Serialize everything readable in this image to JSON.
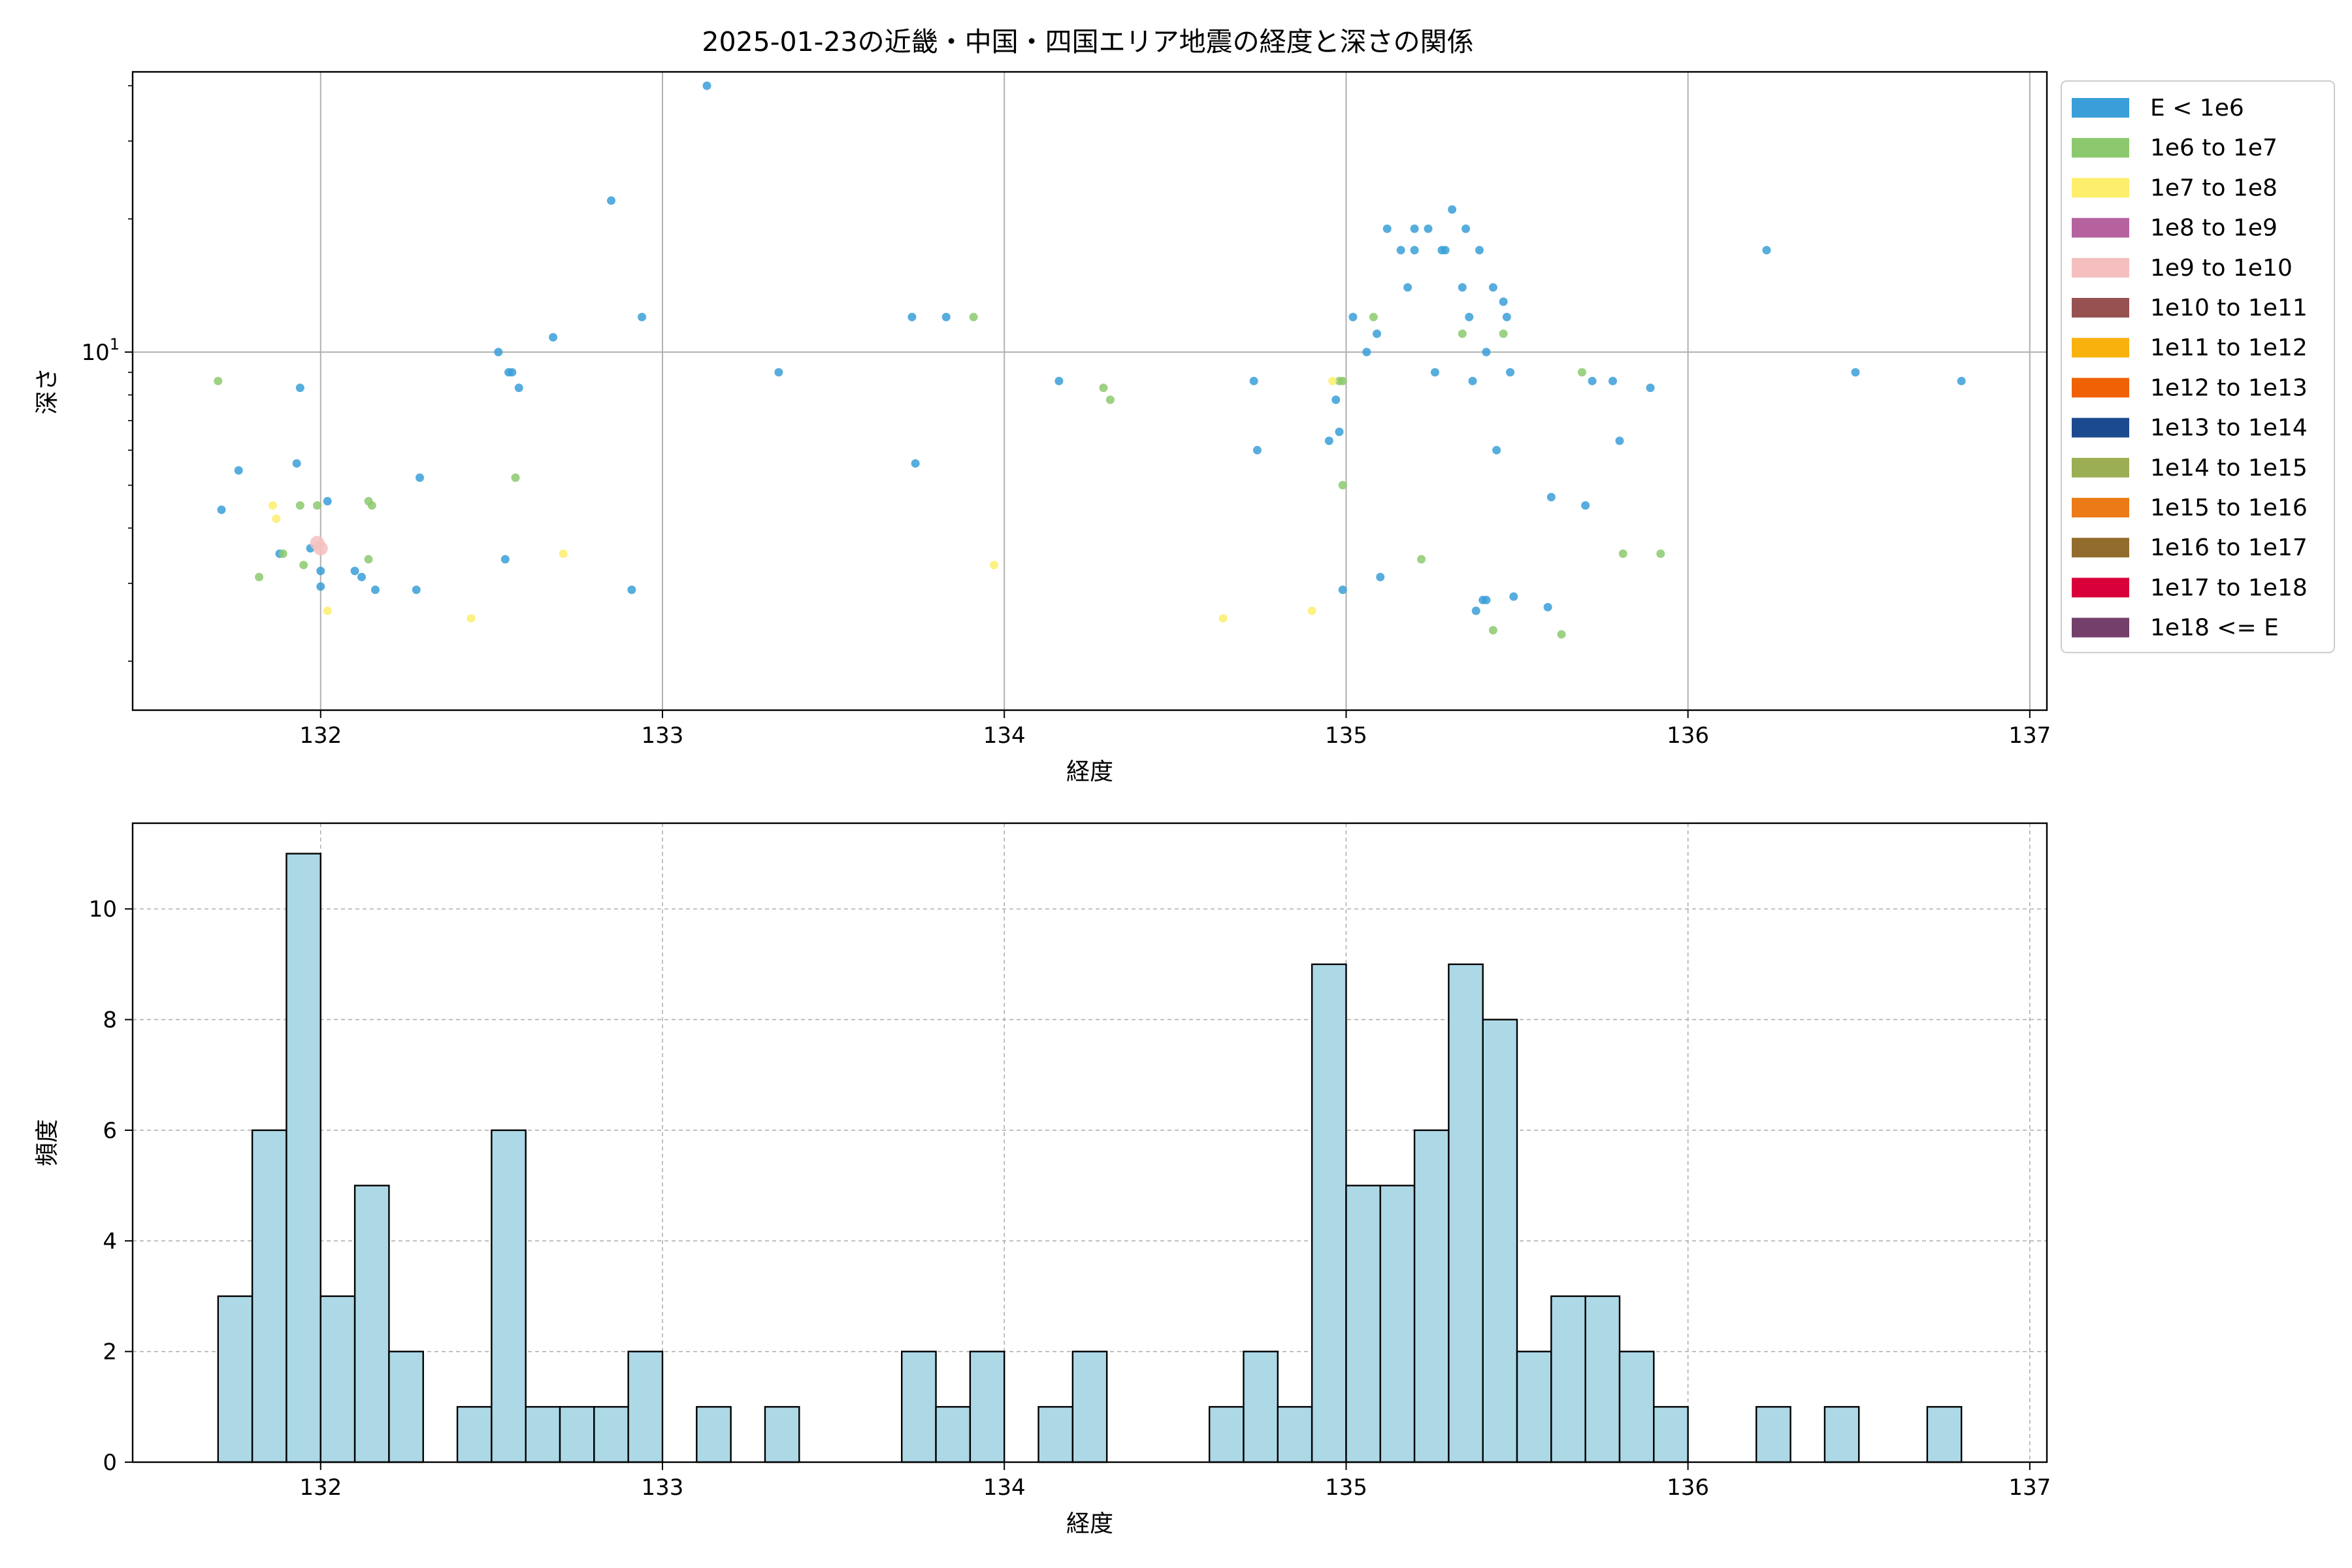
{
  "figure": {
    "title": "2025-01-23の近畿・中国・四国エリア地震の経度と深さの関係"
  },
  "colors": {
    "scatter_blue": "#3a9fd8",
    "scatter_green": "#8cc96e",
    "scatter_yellow": "#fdee6b",
    "scatter_pink": "#f5bfbf",
    "histogram_fill": "#add8e6",
    "histogram_edge": "#000000",
    "grid": "#b0b0b0"
  },
  "chart_data": [
    {
      "type": "scatter",
      "xlabel": "経度",
      "ylabel": "深さ",
      "y_scale": "log",
      "xlim": [
        131.45,
        137.05
      ],
      "ylim": [
        1.55,
        43
      ],
      "x_ticks": [
        132,
        133,
        134,
        135,
        136,
        137
      ],
      "y_major_tick": 10,
      "y_major_label_base": "10",
      "y_major_label_exp": "1",
      "grid": true,
      "legend_position": "outside-right",
      "legend": [
        {
          "label": "E < 1e6",
          "color": "#3a9fd8"
        },
        {
          "label": "1e6 to 1e7",
          "color": "#8cc96e"
        },
        {
          "label": "1e7 to 1e8",
          "color": "#fdee6b"
        },
        {
          "label": "1e8 to 1e9",
          "color": "#b5629f"
        },
        {
          "label": "1e9 to 1e10",
          "color": "#f5bfbf"
        },
        {
          "label": "1e10 to 1e11",
          "color": "#975151"
        },
        {
          "label": "1e11 to 1e12",
          "color": "#f9b10e"
        },
        {
          "label": "1e12 to 1e13",
          "color": "#ef6104"
        },
        {
          "label": "1e13 to 1e14",
          "color": "#1c4a8f"
        },
        {
          "label": "1e14 to 1e15",
          "color": "#9bae53"
        },
        {
          "label": "1e15 to 1e16",
          "color": "#ec7b17"
        },
        {
          "label": "1e16 to 1e17",
          "color": "#926c2d"
        },
        {
          "label": "1e17 to 1e18",
          "color": "#d9003a"
        },
        {
          "label": "1e18 <= E",
          "color": "#74406b"
        }
      ],
      "series": [
        {
          "name": "E < 1e6",
          "points": [
            [
              131.71,
              4.4
            ],
            [
              131.76,
              5.4
            ],
            [
              131.88,
              3.5
            ],
            [
              131.93,
              5.6
            ],
            [
              131.94,
              8.3
            ],
            [
              131.97,
              3.6
            ],
            [
              132.0,
              3.2
            ],
            [
              132.0,
              2.95
            ],
            [
              132.02,
              4.6
            ],
            [
              132.1,
              3.2
            ],
            [
              132.12,
              3.1
            ],
            [
              132.16,
              2.9
            ],
            [
              132.28,
              2.9
            ],
            [
              132.29,
              5.2
            ],
            [
              132.52,
              10.0
            ],
            [
              132.54,
              3.4
            ],
            [
              132.55,
              9.0
            ],
            [
              132.56,
              9.0
            ],
            [
              132.58,
              8.3
            ],
            [
              132.68,
              10.8
            ],
            [
              132.85,
              22.0
            ],
            [
              132.91,
              2.9
            ],
            [
              132.94,
              12.0
            ],
            [
              133.13,
              40.0
            ],
            [
              133.34,
              9.0
            ],
            [
              133.73,
              12.0
            ],
            [
              133.74,
              5.6
            ],
            [
              133.83,
              12.0
            ],
            [
              134.16,
              8.6
            ],
            [
              134.73,
              8.6
            ],
            [
              134.74,
              6.0
            ],
            [
              134.95,
              6.3
            ],
            [
              134.97,
              7.8
            ],
            [
              134.98,
              6.6
            ],
            [
              134.99,
              2.9
            ],
            [
              135.02,
              12.0
            ],
            [
              135.06,
              10.0
            ],
            [
              135.09,
              11.0
            ],
            [
              135.1,
              3.1
            ],
            [
              135.12,
              19.0
            ],
            [
              135.16,
              17.0
            ],
            [
              135.18,
              14.0
            ],
            [
              135.2,
              19.0
            ],
            [
              135.2,
              17.0
            ],
            [
              135.24,
              19.0
            ],
            [
              135.26,
              9.0
            ],
            [
              135.28,
              17.0
            ],
            [
              135.29,
              17.0
            ],
            [
              135.31,
              21.0
            ],
            [
              135.34,
              14.0
            ],
            [
              135.35,
              19.0
            ],
            [
              135.36,
              12.0
            ],
            [
              135.37,
              8.6
            ],
            [
              135.38,
              2.6
            ],
            [
              135.39,
              17.0
            ],
            [
              135.4,
              2.75
            ],
            [
              135.41,
              2.75
            ],
            [
              135.41,
              10.0
            ],
            [
              135.43,
              14.0
            ],
            [
              135.44,
              6.0
            ],
            [
              135.46,
              13.0
            ],
            [
              135.47,
              12.0
            ],
            [
              135.48,
              9.0
            ],
            [
              135.49,
              2.8
            ],
            [
              135.59,
              2.65
            ],
            [
              135.6,
              4.7
            ],
            [
              135.7,
              4.5
            ],
            [
              135.72,
              8.6
            ],
            [
              135.78,
              8.6
            ],
            [
              135.8,
              6.3
            ],
            [
              135.89,
              8.3
            ],
            [
              136.23,
              17.0
            ],
            [
              136.49,
              9.0
            ],
            [
              136.8,
              8.6
            ]
          ]
        },
        {
          "name": "1e6 to 1e7",
          "points": [
            [
              131.7,
              8.6
            ],
            [
              131.82,
              3.1
            ],
            [
              131.89,
              3.5
            ],
            [
              131.94,
              4.5
            ],
            [
              131.95,
              3.3
            ],
            [
              131.99,
              4.5
            ],
            [
              132.14,
              4.6
            ],
            [
              132.15,
              4.5
            ],
            [
              132.14,
              3.4
            ],
            [
              132.57,
              5.2
            ],
            [
              133.91,
              12.0
            ],
            [
              134.29,
              8.3
            ],
            [
              134.31,
              7.8
            ],
            [
              134.98,
              8.6
            ],
            [
              134.99,
              8.6
            ],
            [
              134.99,
              5.0
            ],
            [
              135.08,
              12.0
            ],
            [
              135.22,
              3.4
            ],
            [
              135.34,
              11.0
            ],
            [
              135.43,
              2.35
            ],
            [
              135.46,
              11.0
            ],
            [
              135.63,
              2.3
            ],
            [
              135.69,
              9.0
            ],
            [
              135.81,
              3.5
            ],
            [
              135.92,
              3.5
            ]
          ]
        },
        {
          "name": "1e7 to 1e8",
          "points": [
            [
              131.86,
              4.5
            ],
            [
              131.87,
              4.2
            ],
            [
              132.02,
              2.6
            ],
            [
              132.44,
              2.5
            ],
            [
              132.71,
              3.5
            ],
            [
              133.97,
              3.3
            ],
            [
              134.64,
              2.5
            ],
            [
              134.9,
              2.6
            ],
            [
              134.96,
              8.6
            ]
          ]
        },
        {
          "name": "1e9 to 1e10",
          "points": [
            [
              131.99,
              3.7
            ],
            [
              132.0,
              3.6
            ]
          ]
        }
      ]
    },
    {
      "type": "bar",
      "histogram": true,
      "xlabel": "経度",
      "ylabel": "頻度",
      "xlim": [
        131.45,
        137.05
      ],
      "ylim": [
        0,
        11.55
      ],
      "x_ticks": [
        132,
        133,
        134,
        135,
        136,
        137
      ],
      "y_ticks": [
        0,
        2,
        4,
        6,
        8,
        10
      ],
      "grid": true,
      "bin_start": 131.7,
      "bin_width": 0.1,
      "counts": [
        3,
        6,
        11,
        3,
        5,
        2,
        0,
        1,
        6,
        1,
        1,
        1,
        2,
        0,
        1,
        0,
        1,
        0,
        0,
        0,
        2,
        1,
        2,
        0,
        1,
        2,
        0,
        0,
        0,
        1,
        2,
        1,
        9,
        5,
        5,
        6,
        9,
        8,
        2,
        3,
        3,
        2,
        1,
        0,
        0,
        1,
        0,
        1,
        0,
        0,
        1
      ]
    }
  ]
}
